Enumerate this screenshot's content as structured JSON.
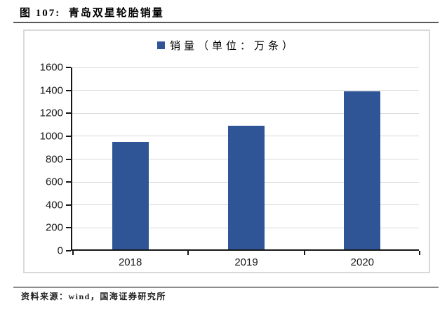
{
  "figure": {
    "title": "图 107:  青岛双星轮胎销量",
    "source": "资料来源：wind，国海证券研究所"
  },
  "chart_data": {
    "type": "bar",
    "title": "",
    "legend_label": "销量（单位：万条）",
    "legend_position": "top",
    "categories": [
      "2018",
      "2019",
      "2020"
    ],
    "series": [
      {
        "name": "销量（单位：万条）",
        "values": [
          940,
          1080,
          1380
        ]
      }
    ],
    "xlabel": "",
    "ylabel": "",
    "ylim": [
      0,
      1600
    ],
    "yticks": [
      0,
      200,
      400,
      600,
      800,
      1000,
      1200,
      1400,
      1600
    ],
    "grid": true,
    "colors": {
      "bar": "#2F5597",
      "gridline": "#d9d9d9",
      "axis": "#161616"
    }
  }
}
